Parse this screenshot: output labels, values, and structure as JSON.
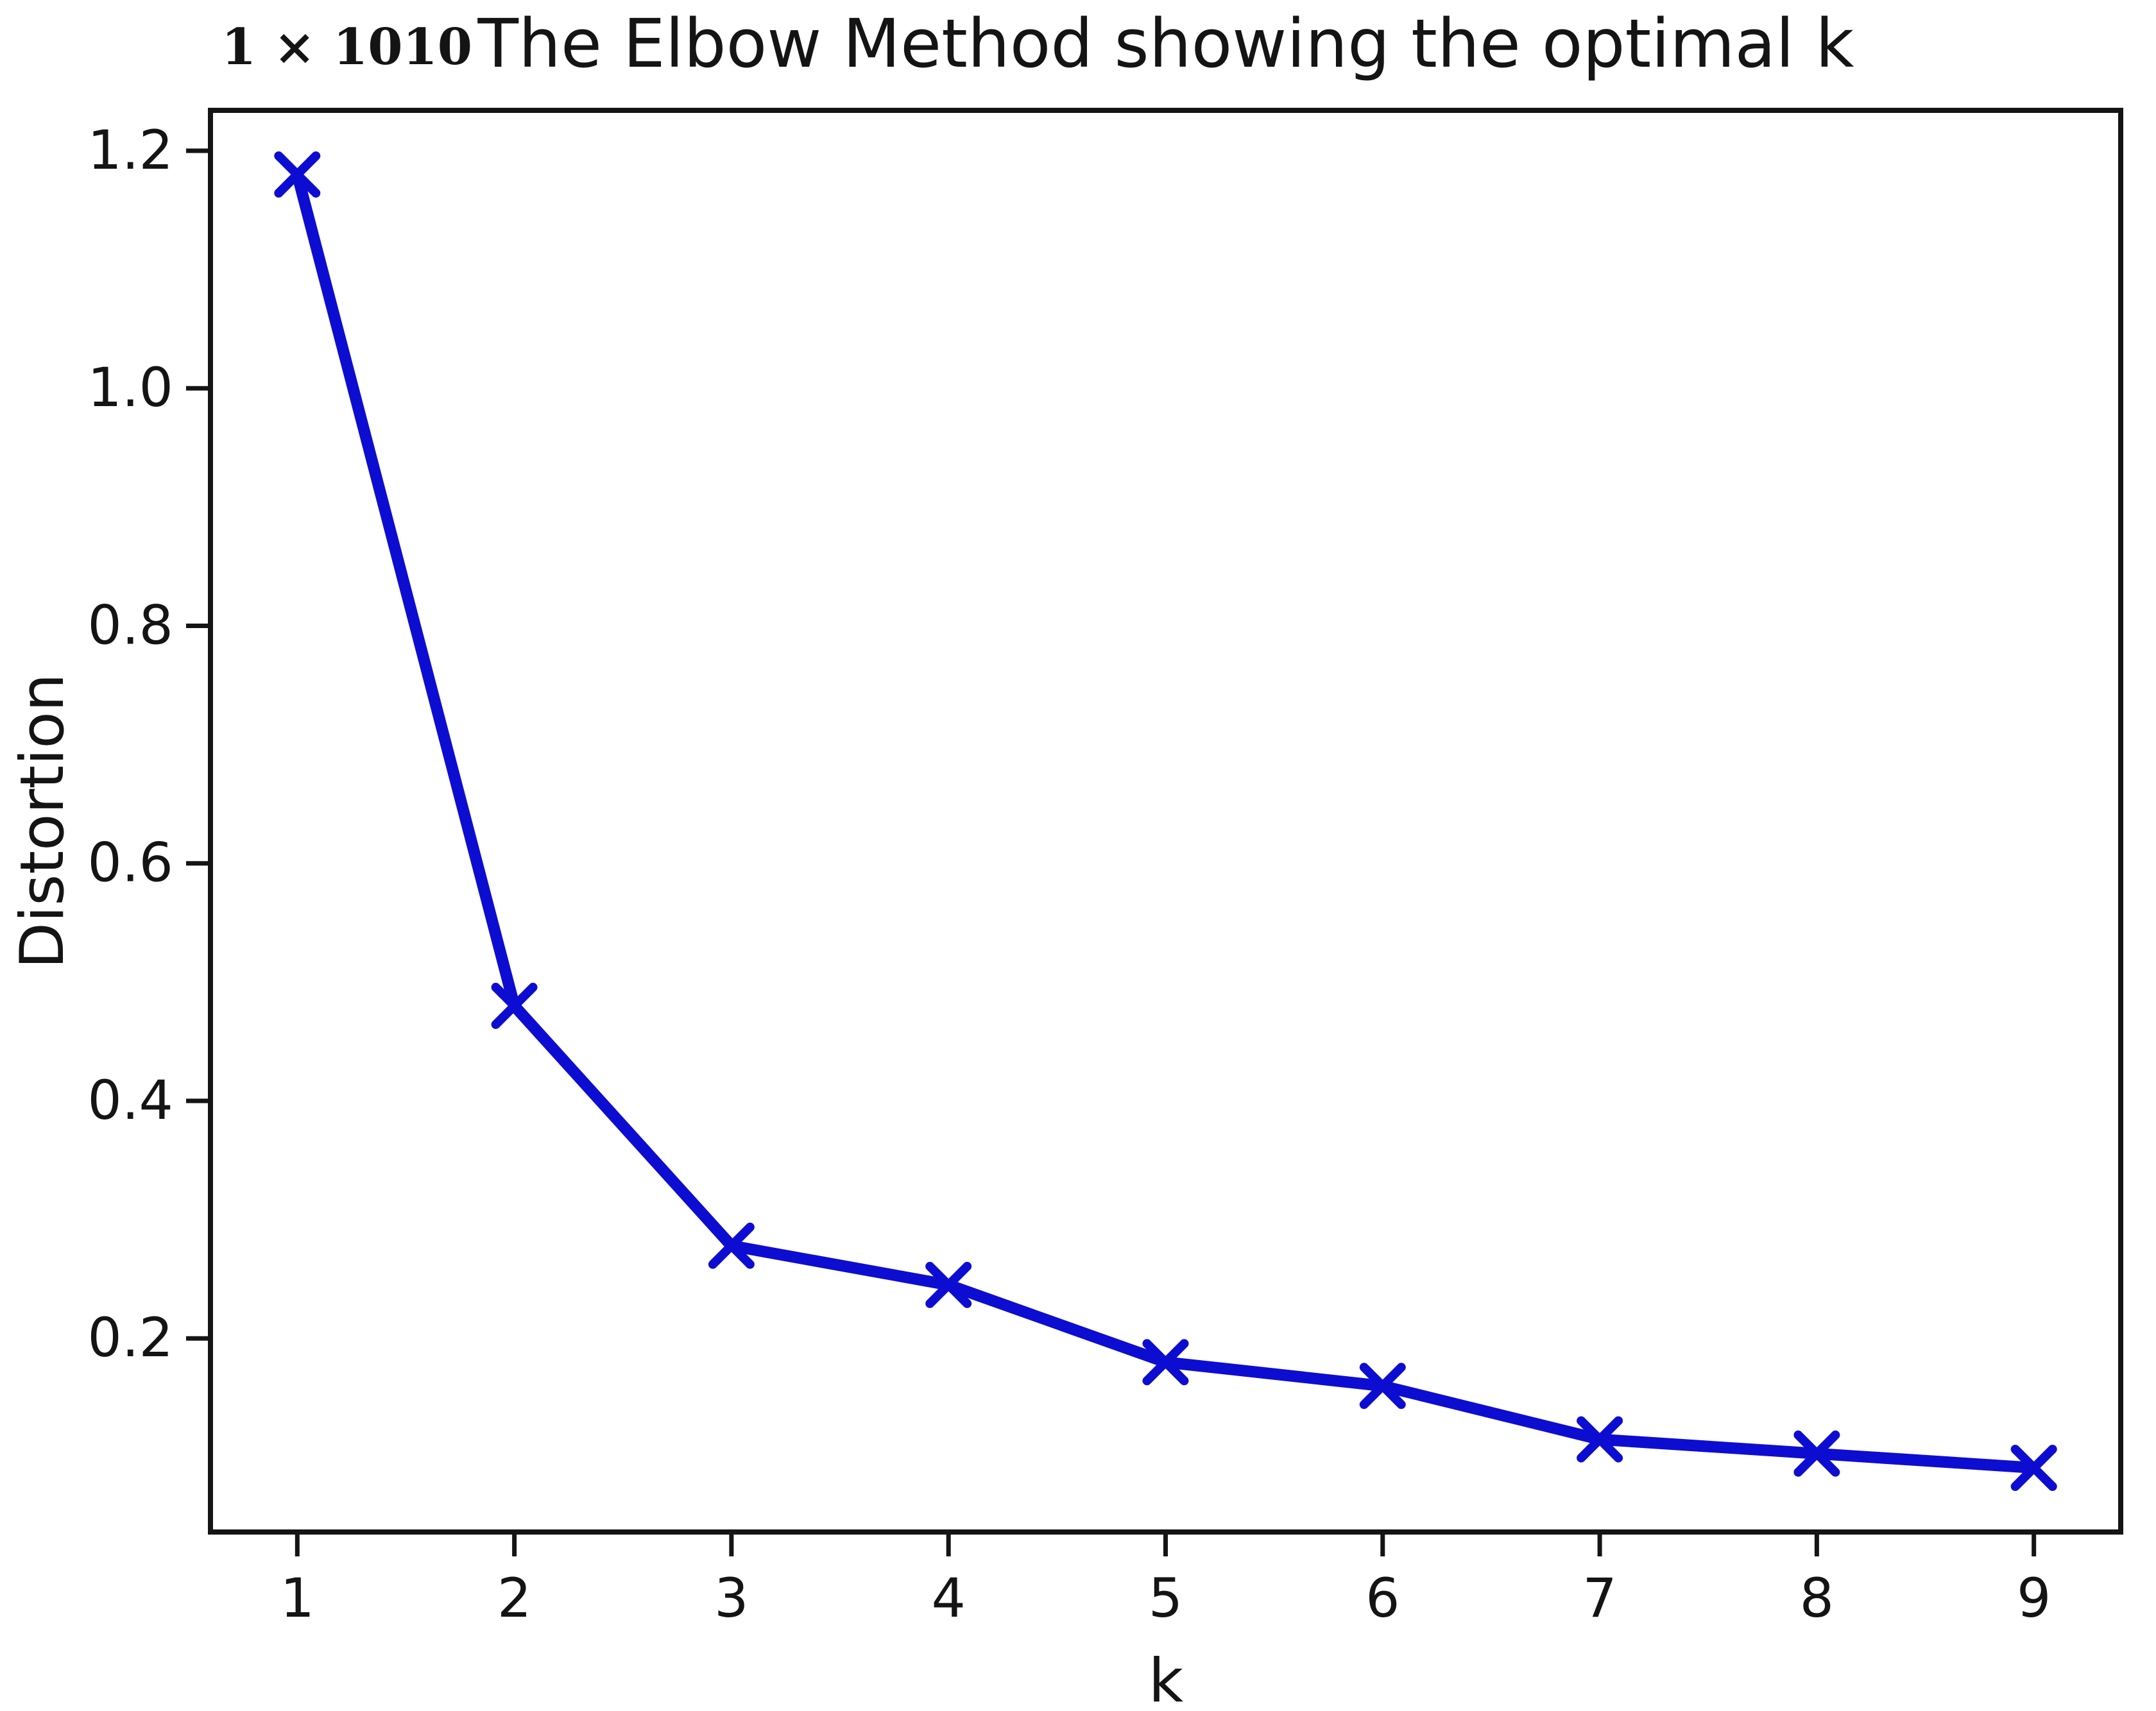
{
  "chart_data": {
    "type": "line",
    "title": "The Elbow Method showing the optimal k",
    "xlabel": "k",
    "ylabel": "Distortion",
    "offset_text": "1 × 1010",
    "y_unit": "1e10",
    "x": [
      1,
      2,
      3,
      4,
      5,
      6,
      7,
      8,
      9
    ],
    "y": [
      1.18,
      0.48,
      0.278,
      0.245,
      0.18,
      0.16,
      0.115,
      0.103,
      0.091
    ],
    "series_name": "Distortion",
    "marker": "x",
    "grid": false,
    "legend": "none",
    "xticks": [
      1,
      2,
      3,
      4,
      5,
      6,
      7,
      8,
      9
    ],
    "xtick_labels": [
      "1",
      "2",
      "3",
      "4",
      "5",
      "6",
      "7",
      "8",
      "9"
    ],
    "yticks": [
      0.2,
      0.4,
      0.6,
      0.8,
      1.0,
      1.2
    ],
    "ytick_labels": [
      "0.2",
      "0.4",
      "0.6",
      "0.8",
      "1.0",
      "1.2"
    ],
    "xlim": [
      0.6,
      9.4
    ],
    "ylim": [
      0.037,
      1.234
    ],
    "line_color": "#0d0dd2",
    "axis_color": "#141414",
    "text_color": "#141414",
    "background_color": "#ffffff"
  }
}
